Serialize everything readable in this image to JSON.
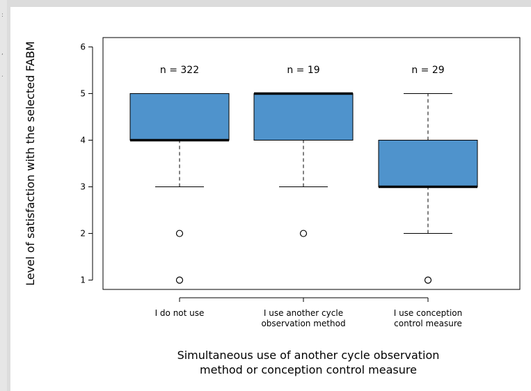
{
  "chart_data": {
    "type": "box",
    "ylabel": "Level of satisfaction with the selected FABM",
    "xlabel_lines": [
      "Simultaneous use of another cycle observation",
      "method or conception control measure"
    ],
    "ylim": [
      0.8,
      6.2
    ],
    "y_ticks": [
      1,
      2,
      3,
      4,
      5,
      6
    ],
    "categories": [
      {
        "label_lines": [
          "I do not use"
        ],
        "n_label": "n = 322"
      },
      {
        "label_lines": [
          "I use another cycle",
          "observation method"
        ],
        "n_label": "n = 19"
      },
      {
        "label_lines": [
          "I use conception",
          "control measure"
        ],
        "n_label": "n = 29"
      }
    ],
    "boxes": [
      {
        "whisker_low": 3,
        "q1": 4,
        "median": 4,
        "q3": 5,
        "whisker_high": 5,
        "outliers": [
          2,
          1
        ]
      },
      {
        "whisker_low": 3,
        "q1": 4,
        "median": 5,
        "q3": 5,
        "whisker_high": 5,
        "outliers": [
          2
        ]
      },
      {
        "whisker_low": 2,
        "q1": 3,
        "median": 3,
        "q3": 4,
        "whisker_high": 5,
        "outliers": [
          1
        ]
      }
    ],
    "grid": false,
    "legend": "none"
  },
  "colors": {
    "box_fill": "#4f93cc",
    "line": "#000000",
    "text": "#000000"
  },
  "side_marks": [
    ":",
    ",",
    "."
  ]
}
